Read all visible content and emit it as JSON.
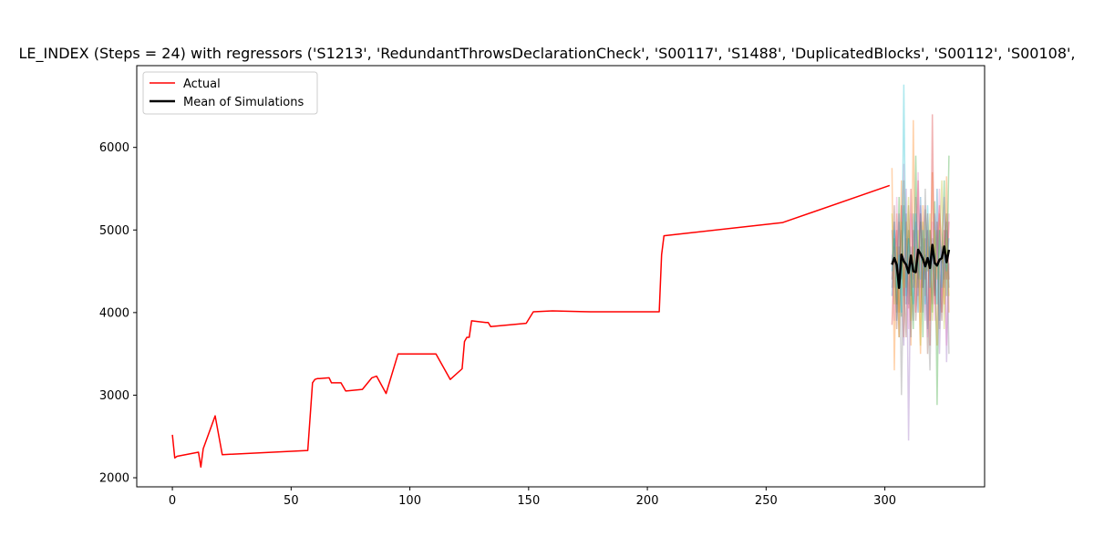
{
  "chart_data": {
    "type": "line",
    "title": "LE_INDEX (Steps = 24) with regressors ('S1213', 'RedundantThrowsDeclarationCheck', 'S00117', 'S1488', 'DuplicatedBlocks', 'S00112', 'S00108',",
    "xlabel": "",
    "ylabel": "",
    "xlim": [
      -15,
      342
    ],
    "ylim": [
      1890,
      6990
    ],
    "x_ticks": [
      0,
      50,
      100,
      150,
      200,
      250,
      300
    ],
    "y_ticks": [
      2000,
      3000,
      4000,
      5000,
      6000
    ],
    "grid": false,
    "legend_position": "top-left",
    "series": [
      {
        "name": "Actual",
        "color": "#ff0000",
        "x": [
          0,
          1,
          2,
          11,
          12,
          13,
          18,
          21,
          57,
          59,
          60,
          61,
          62,
          66,
          67,
          71,
          73,
          80,
          84,
          86,
          90,
          95,
          111,
          117,
          122,
          123,
          124,
          125,
          126,
          132,
          133,
          134,
          149,
          152,
          160,
          176,
          205,
          206,
          207,
          257,
          302
        ],
        "y": [
          2520,
          2240,
          2260,
          2310,
          2130,
          2350,
          2750,
          2280,
          2330,
          3150,
          3190,
          3200,
          3200,
          3210,
          3150,
          3150,
          3050,
          3070,
          3210,
          3230,
          3020,
          3500,
          3500,
          3190,
          3320,
          3650,
          3700,
          3700,
          3900,
          3880,
          3880,
          3830,
          3870,
          4010,
          4020,
          4010,
          4010,
          4700,
          4930,
          5090,
          5540
        ]
      },
      {
        "name": "Mean of Simulations",
        "color": "#000000",
        "x": [
          303,
          304,
          305,
          306,
          307,
          308,
          309,
          310,
          311,
          312,
          313,
          314,
          315,
          316,
          317,
          318,
          319,
          320,
          321,
          322,
          323,
          324,
          325,
          326,
          327
        ],
        "y": [
          4580,
          4660,
          4580,
          4300,
          4700,
          4620,
          4580,
          4480,
          4690,
          4500,
          4490,
          4760,
          4710,
          4650,
          4560,
          4660,
          4540,
          4820,
          4600,
          4570,
          4640,
          4660,
          4800,
          4610,
          4760
        ]
      }
    ],
    "simulations": {
      "x": [
        303,
        304,
        305,
        306,
        307,
        308,
        309,
        310,
        311,
        312,
        313,
        314,
        315,
        316,
        317,
        318,
        319,
        320,
        321,
        322,
        323,
        324,
        325,
        326,
        327
      ],
      "colors": [
        "#1f77b4",
        "#ff7f0e",
        "#2ca02c",
        "#d62728",
        "#9467bd",
        "#8c564b",
        "#e377c2",
        "#7f7f7f",
        "#bcbd22",
        "#17becf"
      ],
      "runs": [
        [
          4200,
          5100,
          3900,
          4800,
          4400,
          5300,
          4100,
          4900,
          3700,
          5200,
          4500,
          4000,
          5400,
          4300,
          4700,
          3800,
          5000,
          4600,
          4200,
          5500,
          3900,
          4800,
          4400,
          5000,
          4300
        ],
        [
          5750,
          3300,
          5200,
          4000,
          5600,
          3700,
          5100,
          4600,
          3600,
          6330,
          4000,
          4700,
          3500,
          5300,
          4200,
          5000,
          3900,
          5700,
          4400,
          3600,
          5200,
          4900,
          4100,
          5650,
          4000
        ],
        [
          4600,
          4900,
          4100,
          5400,
          3950,
          5600,
          4300,
          5000,
          4600,
          3800,
          5900,
          4400,
          5100,
          3700,
          5250,
          4500,
          4800,
          4000,
          5350,
          2880,
          5000,
          4600,
          5600,
          4200,
          5900
        ],
        [
          3850,
          4700,
          5000,
          3700,
          5300,
          4200,
          4900,
          4050,
          5500,
          4300,
          4700,
          5600,
          4000,
          4900,
          4400,
          5200,
          3600,
          6400,
          4100,
          4700,
          5300,
          4000,
          5000,
          4400,
          5100
        ],
        [
          5000,
          4300,
          4600,
          5200,
          4100,
          3600,
          5500,
          2450,
          4800,
          4400,
          5100,
          4200,
          5300,
          4600,
          3900,
          5000,
          4500,
          4100,
          5200,
          4800,
          3500,
          4700,
          5400,
          3400,
          4600
        ],
        [
          4400,
          5300,
          3800,
          4600,
          5000,
          4400,
          3700,
          5300,
          4200,
          5000,
          3900,
          4600,
          5200,
          4300,
          4900,
          3500,
          5000,
          4700,
          4200,
          5100,
          4500,
          3900,
          4800,
          5200,
          4400
        ],
        [
          4700,
          3900,
          5400,
          4300,
          4800,
          5800,
          4400,
          3800,
          5200,
          4600,
          4000,
          5700,
          4300,
          4900,
          5300,
          3700,
          4600,
          5100,
          3900,
          4500,
          5500,
          4200,
          4700,
          3600,
          5200
        ],
        [
          4300,
          4800,
          4000,
          5100,
          3000,
          4600,
          5200,
          4100,
          4700,
          3900,
          5400,
          4300,
          4800,
          4000,
          5500,
          4200,
          3300,
          4900,
          4600,
          5000,
          3800,
          4700,
          4300,
          5100,
          3500
        ],
        [
          5200,
          4100,
          4800,
          3700,
          5100,
          4300,
          4700,
          5400,
          3900,
          4800,
          4300,
          5000,
          3600,
          5100,
          4500,
          4700,
          5200,
          3900,
          5000,
          4400,
          4800,
          5600,
          3800,
          4900,
          4200
        ],
        [
          4500,
          5000,
          4300,
          4700,
          4000,
          6760,
          4200,
          4900,
          4500,
          4100,
          5200,
          4600,
          4400,
          5000,
          4100,
          5300,
          4300,
          4800,
          4500,
          4100,
          5000,
          4300,
          4700,
          4500,
          4900
        ]
      ]
    }
  }
}
